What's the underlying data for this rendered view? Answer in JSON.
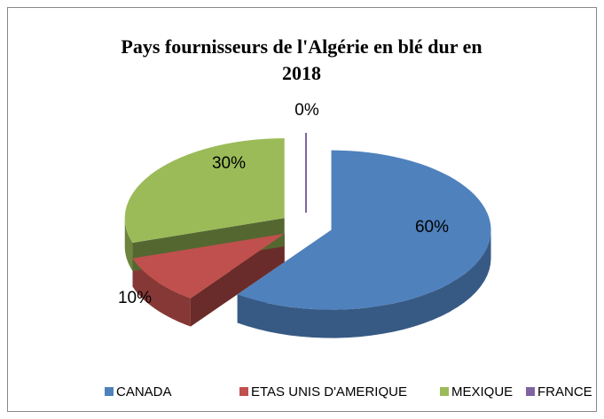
{
  "chart_data": {
    "type": "pie3d",
    "title": "Pays fournisseurs de l'Algérie en blé dur en 2018",
    "categories": [
      "CANADA",
      "ETAS UNIS D'AMERIQUE",
      "MEXIQUE",
      "FRANCE"
    ],
    "values": [
      60,
      10,
      30,
      0
    ],
    "value_labels": [
      "60%",
      "10%",
      "30%",
      "0%"
    ],
    "colors": [
      "#4f81bd",
      "#c0504d",
      "#9bbb59",
      "#8064a2"
    ],
    "legend": "bottom"
  }
}
